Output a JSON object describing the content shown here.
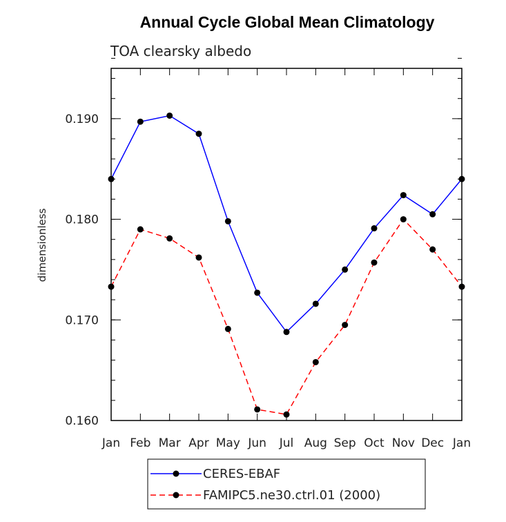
{
  "chart_data": {
    "type": "line",
    "title": "Annual Cycle Global Mean Climatology",
    "subtitle": "TOA clearsky albedo",
    "xlabel": "",
    "ylabel": "dimensionless",
    "categories": [
      "Jan",
      "Feb",
      "Mar",
      "Apr",
      "May",
      "Jun",
      "Jul",
      "Aug",
      "Sep",
      "Oct",
      "Nov",
      "Dec",
      "Jan"
    ],
    "ylim": [
      0.16,
      0.195
    ],
    "yticks": [
      0.16,
      0.17,
      0.18,
      0.19
    ],
    "ytick_labels": [
      "0.160",
      "0.170",
      "0.180",
      "0.190"
    ],
    "y_minor_step": 0.002,
    "legend_placement": "bottom-center",
    "grid": false,
    "series": [
      {
        "name": "CERES-EBAF",
        "color": "#0000ff",
        "dash": "solid",
        "values": [
          0.184,
          0.1897,
          0.1903,
          0.1885,
          0.1798,
          0.1727,
          0.1688,
          0.1716,
          0.175,
          0.1791,
          0.1824,
          0.1805,
          0.184
        ]
      },
      {
        "name": "FAMIPC5.ne30.ctrl.01 (2000)",
        "color": "#ff0000",
        "dash": "dashed",
        "values": [
          0.1733,
          0.179,
          0.1781,
          0.1762,
          0.1691,
          0.1611,
          0.1606,
          0.1658,
          0.1695,
          0.1757,
          0.18,
          0.177,
          0.1733
        ]
      }
    ]
  }
}
